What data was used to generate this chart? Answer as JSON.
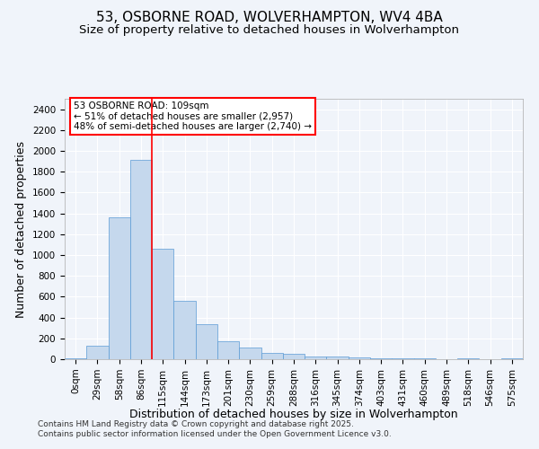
{
  "title_line1": "53, OSBORNE ROAD, WOLVERHAMPTON, WV4 4BA",
  "title_line2": "Size of property relative to detached houses in Wolverhampton",
  "xlabel": "Distribution of detached houses by size in Wolverhampton",
  "ylabel": "Number of detached properties",
  "footer_line1": "Contains HM Land Registry data © Crown copyright and database right 2025.",
  "footer_line2": "Contains public sector information licensed under the Open Government Licence v3.0.",
  "annotation_line1": "53 OSBORNE ROAD: 109sqm",
  "annotation_line2": "← 51% of detached houses are smaller (2,957)",
  "annotation_line3": "48% of semi-detached houses are larger (2,740) →",
  "bar_labels": [
    "0sqm",
    "29sqm",
    "58sqm",
    "86sqm",
    "115sqm",
    "144sqm",
    "173sqm",
    "201sqm",
    "230sqm",
    "259sqm",
    "288sqm",
    "316sqm",
    "345sqm",
    "374sqm",
    "403sqm",
    "431sqm",
    "460sqm",
    "489sqm",
    "518sqm",
    "546sqm",
    "575sqm"
  ],
  "bar_values": [
    10,
    130,
    1360,
    1910,
    1060,
    560,
    335,
    170,
    110,
    60,
    55,
    30,
    25,
    20,
    10,
    5,
    10,
    0,
    5,
    0,
    5
  ],
  "bar_color": "#c5d8ed",
  "bar_edge_color": "#5b9bd5",
  "red_line_x": 4.0,
  "ylim": [
    0,
    2500
  ],
  "yticks": [
    0,
    200,
    400,
    600,
    800,
    1000,
    1200,
    1400,
    1600,
    1800,
    2000,
    2200,
    2400
  ],
  "background_color": "#f0f4fa",
  "plot_bg_color": "#f0f4fa",
  "grid_color": "#ffffff",
  "title_fontsize": 11,
  "subtitle_fontsize": 9.5,
  "axis_label_fontsize": 9,
  "tick_fontsize": 7.5,
  "annotation_fontsize": 7.5,
  "footer_fontsize": 6.5
}
